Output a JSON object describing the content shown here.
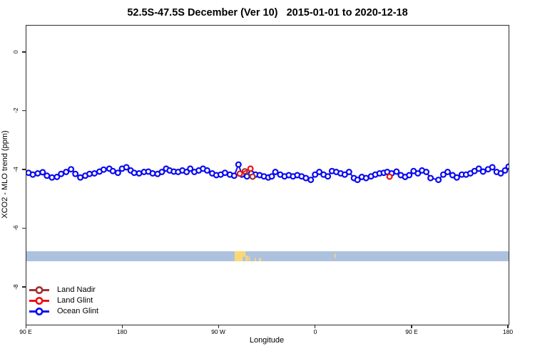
{
  "title": "52.5S-47.5S December (Ver 10)   2015-01-01 to 2020-12-18",
  "axes": {
    "x": {
      "label": "Longitude",
      "ticks": [
        {
          "axis_deg": 90,
          "label": "90 E"
        },
        {
          "axis_deg": 180,
          "label": "180"
        },
        {
          "axis_deg": 270,
          "label": "90 W"
        },
        {
          "axis_deg": 360,
          "label": "0"
        },
        {
          "axis_deg": 450,
          "label": "90 E"
        },
        {
          "axis_deg": 540,
          "label": "180"
        }
      ]
    },
    "y": {
      "label": "XCO2 - MLO trend (ppm)",
      "ticks": [
        {
          "value": 0,
          "label": "0"
        },
        {
          "value": -2,
          "label": "-2"
        },
        {
          "value": -4,
          "label": "-4"
        },
        {
          "value": -6,
          "label": "-6"
        },
        {
          "value": -8,
          "label": "-8"
        }
      ]
    }
  },
  "legend": [
    {
      "label": "Land Nadir",
      "color": "#a03232"
    },
    {
      "label": "Land Glint",
      "color": "#ee1111"
    },
    {
      "label": "Ocean Glint",
      "color": "#0a0af0"
    }
  ],
  "chart_data": {
    "type": "scatter",
    "title": "52.5S-47.5S December (Ver 10)   2015-01-01 to 2020-12-18",
    "xlabel": "Longitude",
    "ylabel": "XCO2 - MLO trend (ppm)",
    "x_axis_note": "Longitude unwrapped eastward from 90E; axis_deg 90..540 maps to tick labels 90 E, 180, 90 W, 0, 90 E, 180",
    "x_range_axis_deg": [
      90,
      540
    ],
    "y_range": [
      0.92,
      -9.26
    ],
    "grid": false,
    "legend_position": "bottom-left-inside",
    "series": [
      {
        "name": "Ocean Glint",
        "color": "#0a0af0",
        "marker": "open-circle",
        "line": true,
        "axis_deg": [
          92.0,
          96.0,
          100.6,
          105.2,
          109.2,
          113.8,
          118.5,
          122.4,
          127.1,
          131.7,
          135.7,
          140.3,
          144.9,
          148.9,
          153.5,
          158.2,
          162.1,
          167.4,
          170.7,
          175.4,
          179.3,
          183.3,
          187.3,
          190.6,
          195.2,
          199.8,
          203.8,
          207.8,
          212.4,
          216.4,
          220.4,
          223.7,
          227.6,
          231.6,
          235.6,
          239.5,
          242.9,
          246.8,
          250.8,
          254.8,
          258.7,
          263.4,
          267.3,
          271.3,
          275.3,
          279.9,
          283.9,
          287.9,
          291.2,
          295.8,
          299.8,
          303.8,
          307.7,
          311.7,
          315.7,
          319.0,
          322.3,
          326.9,
          330.9,
          334.9,
          338.8,
          342.8,
          346.8,
          350.8,
          355.4,
          359.4,
          363.3,
          367.3,
          371.3,
          375.2,
          379.2,
          383.2,
          387.1,
          391.1,
          395.7,
          399.0,
          403.0,
          407.0,
          411.6,
          415.6,
          419.6,
          423.5,
          426.8,
          430.8,
          435.4,
          439.4,
          443.4,
          447.3,
          451.3,
          455.3,
          459.2,
          463.2,
          467.2,
          474.5,
          479.1,
          483.1,
          487.7,
          491.7,
          496.3,
          500.3,
          504.3,
          508.2,
          512.2,
          516.2,
          520.8,
          524.8,
          528.8,
          532.7,
          536.7,
          540.0
        ],
        "values": [
          -4.09,
          -4.15,
          -4.11,
          -4.07,
          -4.19,
          -4.25,
          -4.23,
          -4.13,
          -4.06,
          -3.97,
          -4.13,
          -4.25,
          -4.19,
          -4.13,
          -4.11,
          -4.05,
          -3.98,
          -3.95,
          -4.03,
          -4.09,
          -3.95,
          -3.9,
          -4.01,
          -4.09,
          -4.11,
          -4.06,
          -4.05,
          -4.11,
          -4.13,
          -4.06,
          -3.95,
          -4.01,
          -4.05,
          -4.06,
          -4.01,
          -4.06,
          -3.95,
          -4.06,
          -4.01,
          -3.95,
          -4.01,
          -4.11,
          -4.17,
          -4.15,
          -4.09,
          -4.15,
          -4.19,
          -3.81,
          -4.15,
          -4.21,
          -4.11,
          -4.15,
          -4.17,
          -4.21,
          -4.25,
          -4.21,
          -4.06,
          -4.15,
          -4.21,
          -4.17,
          -4.21,
          -4.17,
          -4.21,
          -4.27,
          -4.33,
          -4.15,
          -4.06,
          -4.15,
          -4.21,
          -4.03,
          -4.06,
          -4.11,
          -4.15,
          -4.06,
          -4.27,
          -4.33,
          -4.23,
          -4.27,
          -4.21,
          -4.15,
          -4.11,
          -4.09,
          -4.06,
          -4.11,
          -4.05,
          -4.17,
          -4.23,
          -4.17,
          -4.03,
          -4.11,
          -4.01,
          -4.06,
          -4.27,
          -4.33,
          -4.15,
          -4.06,
          -4.17,
          -4.25,
          -4.15,
          -4.15,
          -4.11,
          -4.03,
          -3.95,
          -4.05,
          -3.97,
          -3.9,
          -4.06,
          -4.11,
          -4.01,
          -3.88
        ]
      },
      {
        "name": "Land Nadir",
        "color": "#a03232",
        "marker": "open-circle",
        "line": true,
        "axis_deg": [
          293.8,
          301.1
        ],
        "values": [
          -4.04,
          -4.22
        ]
      },
      {
        "name": "Land Glint",
        "color": "#ee1111",
        "marker": "open-circle",
        "line": true,
        "line_max_gap_deg": 15,
        "axis_deg": [
          289.2,
          299.1,
          428.9
        ],
        "values": [
          -4.12,
          -3.95,
          -4.22
        ]
      }
    ],
    "coverage_band": {
      "value": -6.93,
      "thickness": 0.34,
      "color": "#acc1de",
      "x_range_axis_deg": [
        90,
        540
      ],
      "meaning": "full-width horizontal strip near y=-7"
    },
    "land_marks": {
      "color": "#f9d877",
      "segments": [
        {
          "a0": 284.3,
          "a1": 292.0,
          "y0": 0.0,
          "y1": 1.0
        },
        {
          "a0": 292.0,
          "a1": 294.6,
          "y0": 0.0,
          "y1": 0.55
        },
        {
          "a0": 294.6,
          "a1": 296.6,
          "y0": 0.45,
          "y1": 1.0
        },
        {
          "a0": 297.3,
          "a1": 298.6,
          "y0": 0.55,
          "y1": 1.0
        },
        {
          "a0": 303.0,
          "a1": 304.2,
          "y0": 0.68,
          "y1": 1.0
        },
        {
          "a0": 307.0,
          "a1": 309.0,
          "y0": 0.68,
          "y1": 1.0
        },
        {
          "a0": 377.4,
          "a1": 378.6,
          "y0": 0.25,
          "y1": 0.65
        }
      ]
    }
  }
}
